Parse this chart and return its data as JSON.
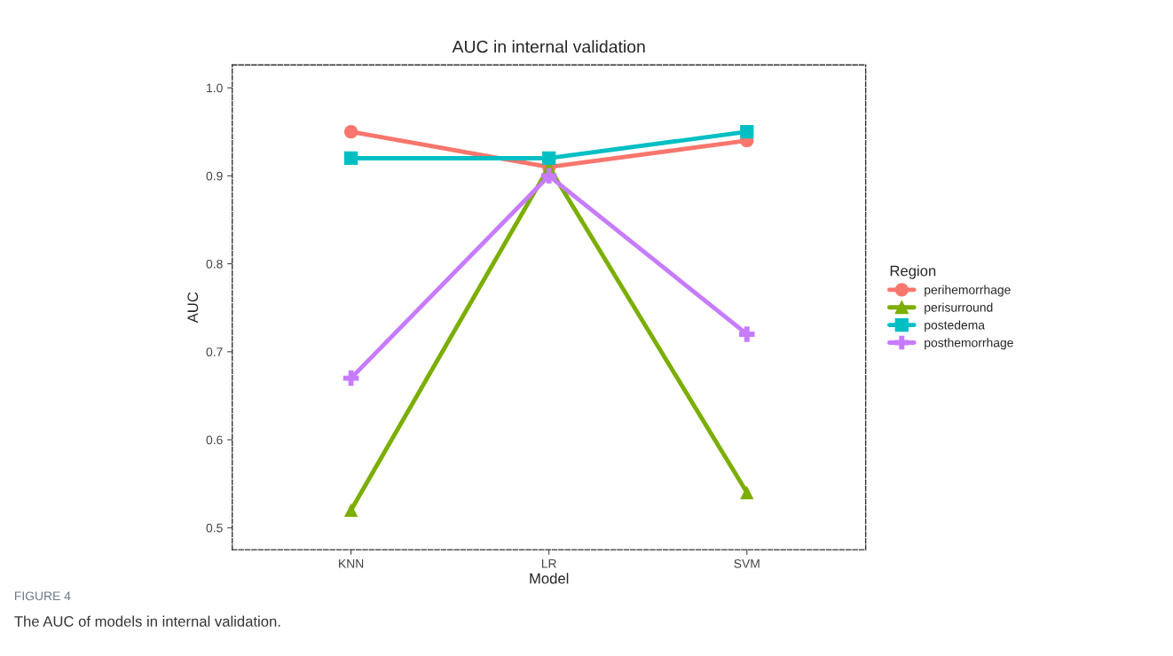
{
  "chart_data": {
    "type": "line",
    "title": "AUC in internal validation",
    "xlabel": "Model",
    "ylabel": "AUC",
    "legend_title": "Region",
    "categories": [
      "KNN",
      "LR",
      "SVM"
    ],
    "series": [
      {
        "name": "perihemorrhage",
        "color": "#f8766d",
        "marker": "circle",
        "values": [
          0.95,
          0.91,
          0.94
        ]
      },
      {
        "name": "perisurround",
        "color": "#7cae00",
        "marker": "triangle",
        "values": [
          0.52,
          0.91,
          0.54
        ]
      },
      {
        "name": "postedema",
        "color": "#00bfc4",
        "marker": "square",
        "values": [
          0.92,
          0.92,
          0.95
        ]
      },
      {
        "name": "posthemorrhage",
        "color": "#c77cff",
        "marker": "cross",
        "values": [
          0.67,
          0.9,
          0.72
        ]
      }
    ],
    "ylim": [
      0.475,
      1.026
    ],
    "yticks": [
      0.5,
      0.6,
      0.7,
      0.8,
      0.9,
      {
        "value": 1.0,
        "label": "1.0"
      }
    ],
    "grid": false,
    "legend": "right",
    "annotations": [
      "FIGURE 4",
      "The AUC of models in internal validation."
    ]
  }
}
